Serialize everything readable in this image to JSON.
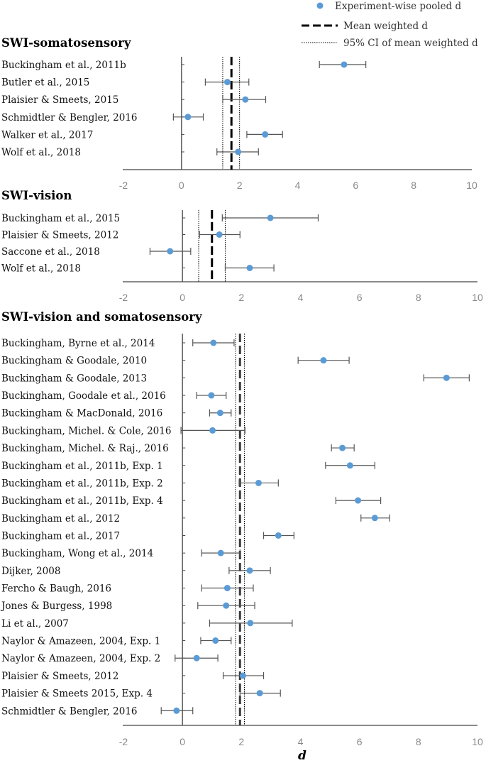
{
  "chart_data": {
    "type": "forest",
    "xlabel": "d",
    "xlim": [
      -2,
      10
    ],
    "xticks": [
      "-2",
      "0",
      "2",
      "4",
      "6",
      "8",
      "10"
    ],
    "legend": {
      "position": "top-right",
      "point": "Experiment-wise pooled d",
      "mean": "Mean weighted d",
      "ci": "95% CI of mean weighted d"
    },
    "panels": [
      {
        "title": "SWI-somatosensory",
        "mean_d": 1.72,
        "ci": [
          1.42,
          2.0
        ],
        "studies": [
          {
            "label": "Buckingham et al., 2011b",
            "d": 5.6,
            "lo": 4.75,
            "hi": 6.35
          },
          {
            "label": "Butler et al., 2015",
            "d": 1.58,
            "lo": 0.82,
            "hi": 2.32
          },
          {
            "label": "Plaisier & Smeets, 2015",
            "d": 2.2,
            "lo": 1.42,
            "hi": 2.9
          },
          {
            "label": "Schmidtler & Bengler, 2016",
            "d": 0.22,
            "lo": -0.28,
            "hi": 0.75
          },
          {
            "label": "Walker et al., 2017",
            "d": 2.88,
            "lo": 2.25,
            "hi": 3.48
          },
          {
            "label": "Wolf et al., 2018",
            "d": 1.95,
            "lo": 1.22,
            "hi": 2.65
          }
        ]
      },
      {
        "title": "SWI-vision",
        "mean_d": 1.0,
        "ci": [
          0.55,
          1.45
        ],
        "studies": [
          {
            "label": "Buckingham et al., 2015",
            "d": 2.98,
            "lo": 1.35,
            "hi": 4.6
          },
          {
            "label": "Plaisier & Smeets, 2012",
            "d": 1.25,
            "lo": 0.58,
            "hi": 1.95
          },
          {
            "label": "Saccone et al., 2018",
            "d": -0.42,
            "lo": -1.1,
            "hi": 0.28
          },
          {
            "label": "Wolf et al., 2018",
            "d": 2.28,
            "lo": 1.45,
            "hi": 3.1
          }
        ]
      },
      {
        "title": "SWI-vision and somatosensory",
        "mean_d": 1.95,
        "ci": [
          1.8,
          2.1
        ],
        "studies": [
          {
            "label": "Buckingham, Byrne et al., 2014",
            "d": 1.05,
            "lo": 0.35,
            "hi": 1.75
          },
          {
            "label": "Buckingham & Goodale, 2010",
            "d": 4.78,
            "lo": 3.92,
            "hi": 5.65
          },
          {
            "label": "Buckingham & Goodale, 2013",
            "d": 8.95,
            "lo": 8.18,
            "hi": 9.72
          },
          {
            "label": "Buckingham, Goodale et al., 2016",
            "d": 0.98,
            "lo": 0.48,
            "hi": 1.48
          },
          {
            "label": "Buckingham & MacDonald, 2016",
            "d": 1.28,
            "lo": 0.92,
            "hi": 1.65
          },
          {
            "label": "Buckingham, Michel. & Cole, 2016",
            "d": 1.02,
            "lo": -0.05,
            "hi": 2.12
          },
          {
            "label": "Buckingham, Michel. & Raj., 2016",
            "d": 5.42,
            "lo": 5.05,
            "hi": 5.82
          },
          {
            "label": "Buckingham et al., 2011b, Exp. 1",
            "d": 5.68,
            "lo": 4.85,
            "hi": 6.52
          },
          {
            "label": "Buckingham et al., 2011b, Exp. 2",
            "d": 2.58,
            "lo": 1.92,
            "hi": 3.25
          },
          {
            "label": "Buckingham et al., 2011b, Exp. 4",
            "d": 5.95,
            "lo": 5.2,
            "hi": 6.72
          },
          {
            "label": "Buckingham et al., 2012",
            "d": 6.52,
            "lo": 6.05,
            "hi": 7.02
          },
          {
            "label": "Buckingham et al., 2017",
            "d": 3.25,
            "lo": 2.75,
            "hi": 3.78
          },
          {
            "label": "Buckingham, Wong et al., 2014",
            "d": 1.3,
            "lo": 0.65,
            "hi": 1.95
          },
          {
            "label": "Dijker, 2008",
            "d": 2.28,
            "lo": 1.58,
            "hi": 2.98
          },
          {
            "label": "Fercho & Baugh, 2016",
            "d": 1.52,
            "lo": 0.65,
            "hi": 2.4
          },
          {
            "label": "Jones & Burgess, 1998",
            "d": 1.48,
            "lo": 0.52,
            "hi": 2.45
          },
          {
            "label": "Li et al., 2007",
            "d": 2.3,
            "lo": 0.92,
            "hi": 3.72
          },
          {
            "label": "Naylor & Amazeen, 2004, Exp. 1",
            "d": 1.12,
            "lo": 0.62,
            "hi": 1.65
          },
          {
            "label": "Naylor & Amazeen, 2004, Exp. 2",
            "d": 0.48,
            "lo": -0.25,
            "hi": 1.2
          },
          {
            "label": "Plaisier & Smeets, 2012",
            "d": 2.05,
            "lo": 1.38,
            "hi": 2.75
          },
          {
            "label": "Plaisier & Smeets 2015, Exp. 4",
            "d": 2.62,
            "lo": 1.95,
            "hi": 3.32
          },
          {
            "label": "Schmidtler & Bengler, 2016",
            "d": -0.2,
            "lo": -0.72,
            "hi": 0.35
          }
        ]
      }
    ]
  },
  "colors": {
    "point": "#5b9bd5",
    "errorbar": "#555555",
    "axis": "#444444",
    "mean_line": "#000000",
    "mean_line_panel3": "#3a3a3a",
    "ci_line": "#000000",
    "tick_text": "#888888"
  }
}
